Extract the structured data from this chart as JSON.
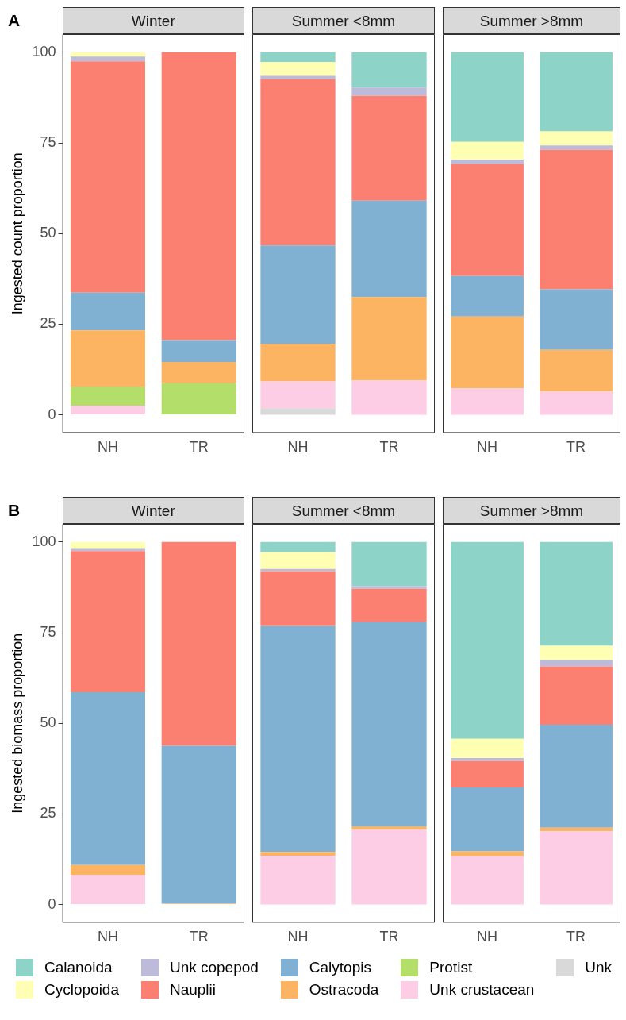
{
  "chart_data": [
    {
      "type": "bar",
      "stacked": true,
      "title": "Winter",
      "ylabel": "Ingested count proportion",
      "annotations": [
        "A"
      ],
      "categories": [
        "NH",
        "TR"
      ],
      "ylim": [
        -5,
        105
      ],
      "yticks": [
        0,
        25,
        50,
        75,
        100
      ],
      "grid": false,
      "series": [
        {
          "color": "#fccde5",
          "values": [
            2.5,
            null
          ]
        },
        {
          "color": "#b3de69",
          "values": [
            5.2,
            8.7
          ]
        },
        {
          "color": "#fdb462",
          "values": [
            15.6,
            5.9
          ]
        },
        {
          "color": "#80b1d3",
          "values": [
            10.4,
            6.0
          ]
        },
        {
          "color": "#fb8072",
          "values": [
            63.8,
            79.4
          ]
        },
        {
          "color": "#bebada",
          "values": [
            1.3,
            null
          ]
        },
        {
          "color": "#ffffb3",
          "values": [
            1.2,
            null
          ]
        }
      ]
    },
    {
      "type": "bar",
      "stacked": true,
      "title": "Summer <8mm",
      "categories": [
        "NH",
        "TR"
      ],
      "ylim": [
        -5,
        105
      ],
      "tick_labels": "x",
      "grid": false,
      "series": [
        {
          "color": "#d9d9d9",
          "values": [
            1.8,
            null
          ]
        },
        {
          "color": "#fccde5",
          "values": [
            7.4,
            9.5
          ]
        },
        {
          "color": "#fdb462",
          "values": [
            10.3,
            23.0
          ]
        },
        {
          "color": "#80b1d3",
          "values": [
            27.2,
            26.6
          ]
        },
        {
          "color": "#fb8072",
          "values": [
            45.9,
            28.9
          ]
        },
        {
          "color": "#bebada",
          "values": [
            0.9,
            2.3
          ]
        },
        {
          "color": "#ffffb3",
          "values": [
            3.8,
            null
          ]
        },
        {
          "color": "#8dd3c7",
          "values": [
            2.7,
            9.7
          ]
        }
      ]
    },
    {
      "type": "bar",
      "stacked": true,
      "title": "Summer >8mm",
      "categories": [
        "NH",
        "TR"
      ],
      "ylim": [
        -5,
        105
      ],
      "tick_labels": "x",
      "grid": false,
      "series": [
        {
          "color": "#fccde5",
          "values": [
            7.3,
            6.4
          ]
        },
        {
          "color": "#fdb462",
          "values": [
            19.8,
            11.5
          ]
        },
        {
          "color": "#80b1d3",
          "values": [
            11.2,
            16.7
          ]
        },
        {
          "color": "#fb8072",
          "values": [
            30.9,
            38.5
          ]
        },
        {
          "color": "#bebada",
          "values": [
            1.2,
            1.2
          ]
        },
        {
          "color": "#ffffb3",
          "values": [
            4.9,
            3.9
          ]
        },
        {
          "color": "#8dd3c7",
          "values": [
            24.7,
            21.8
          ]
        }
      ]
    },
    {
      "type": "bar",
      "stacked": true,
      "title": "Winter",
      "ylabel": "Ingested biomass proportion",
      "annotations": [
        "B"
      ],
      "categories": [
        "NH",
        "TR"
      ],
      "ylim": [
        -5,
        105
      ],
      "yticks": [
        0,
        25,
        50,
        75,
        100
      ],
      "grid": false,
      "series": [
        {
          "color": "#fccde5",
          "values": [
            8.2,
            null
          ]
        },
        {
          "color": "#fdb462",
          "values": [
            2.7,
            0.3
          ]
        },
        {
          "color": "#80b1d3",
          "values": [
            47.7,
            43.5
          ]
        },
        {
          "color": "#fb8072",
          "values": [
            38.9,
            56.2
          ]
        },
        {
          "color": "#bebada",
          "values": [
            0.6,
            null
          ]
        },
        {
          "color": "#ffffb3",
          "values": [
            1.9,
            null
          ]
        }
      ]
    },
    {
      "type": "bar",
      "stacked": true,
      "title": "Summer <8mm",
      "categories": [
        "NH",
        "TR"
      ],
      "ylim": [
        -5,
        105
      ],
      "tick_labels": "x",
      "grid": false,
      "series": [
        {
          "color": "#fccde5",
          "values": [
            13.5,
            20.7
          ]
        },
        {
          "color": "#fdb462",
          "values": [
            1.0,
            0.9
          ]
        },
        {
          "color": "#80b1d3",
          "values": [
            62.3,
            56.3
          ]
        },
        {
          "color": "#fb8072",
          "values": [
            15.2,
            9.2
          ]
        },
        {
          "color": "#bebada",
          "values": [
            0.6,
            0.7
          ]
        },
        {
          "color": "#ffffb3",
          "values": [
            4.6,
            null
          ]
        },
        {
          "color": "#8dd3c7",
          "values": [
            2.8,
            12.2
          ]
        }
      ]
    },
    {
      "type": "bar",
      "stacked": true,
      "title": "Summer >8mm",
      "categories": [
        "NH",
        "TR"
      ],
      "ylim": [
        -5,
        105
      ],
      "tick_labels": "x",
      "grid": false,
      "legend": "bottom",
      "series": [
        {
          "name": "Unk",
          "color": "#d9d9d9",
          "values": [
            null,
            null
          ]
        },
        {
          "name": "Unk crustacean",
          "color": "#fccde5",
          "values": [
            13.3,
            20.2
          ]
        },
        {
          "name": "Protist",
          "color": "#b3de69",
          "values": [
            null,
            null
          ]
        },
        {
          "name": "Ostracoda",
          "color": "#fdb462",
          "values": [
            1.4,
            1.0
          ]
        },
        {
          "name": "Calytopis",
          "color": "#80b1d3",
          "values": [
            17.6,
            28.4
          ]
        },
        {
          "name": "Nauplii",
          "color": "#fb8072",
          "values": [
            7.3,
            16.1
          ]
        },
        {
          "name": "Unk copepod",
          "color": "#bebada",
          "values": [
            0.8,
            1.7
          ]
        },
        {
          "name": "Cyclopoida",
          "color": "#ffffb3",
          "values": [
            5.3,
            4.0
          ]
        },
        {
          "name": "Calanoida",
          "color": "#8dd3c7",
          "values": [
            54.3,
            28.6
          ]
        }
      ]
    }
  ]
}
